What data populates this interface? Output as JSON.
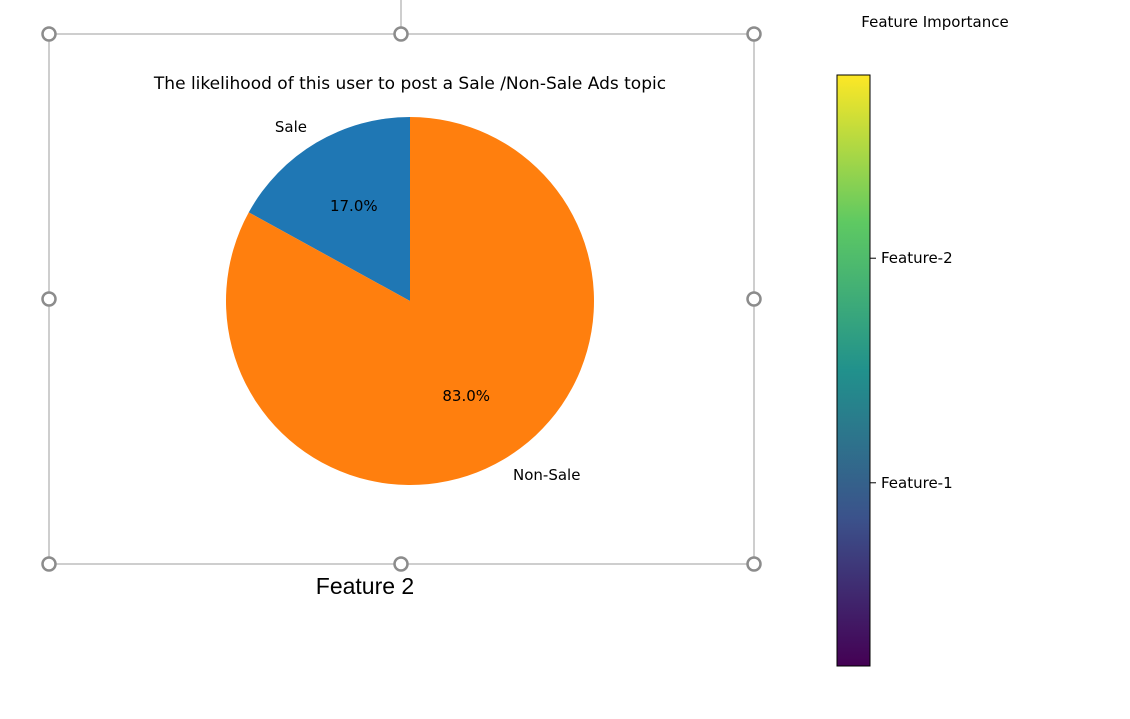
{
  "caption": "Feature 2",
  "chart_data": [
    {
      "type": "pie",
      "title": "The likelihood of this user to post a Sale /Non-Sale Ads topic",
      "slices": [
        {
          "label": "Sale",
          "value": 17.0,
          "pct_label": "17.0%",
          "color": "#1f77b4"
        },
        {
          "label": "Non-Sale",
          "value": 83.0,
          "pct_label": "83.0%",
          "color": "#ff7f0e"
        }
      ]
    },
    {
      "type": "colorbar",
      "title": "Feature Importance",
      "colormap": "viridis",
      "colormap_stops": [
        "#440154",
        "#3b528b",
        "#21918c",
        "#5ec962",
        "#fde725"
      ],
      "ticks": [
        {
          "label": "Feature-1",
          "fraction": 0.31
        },
        {
          "label": "Feature-2",
          "fraction": 0.69
        }
      ]
    }
  ],
  "selection_frame": {
    "handle_count": 8,
    "state": "selected"
  }
}
